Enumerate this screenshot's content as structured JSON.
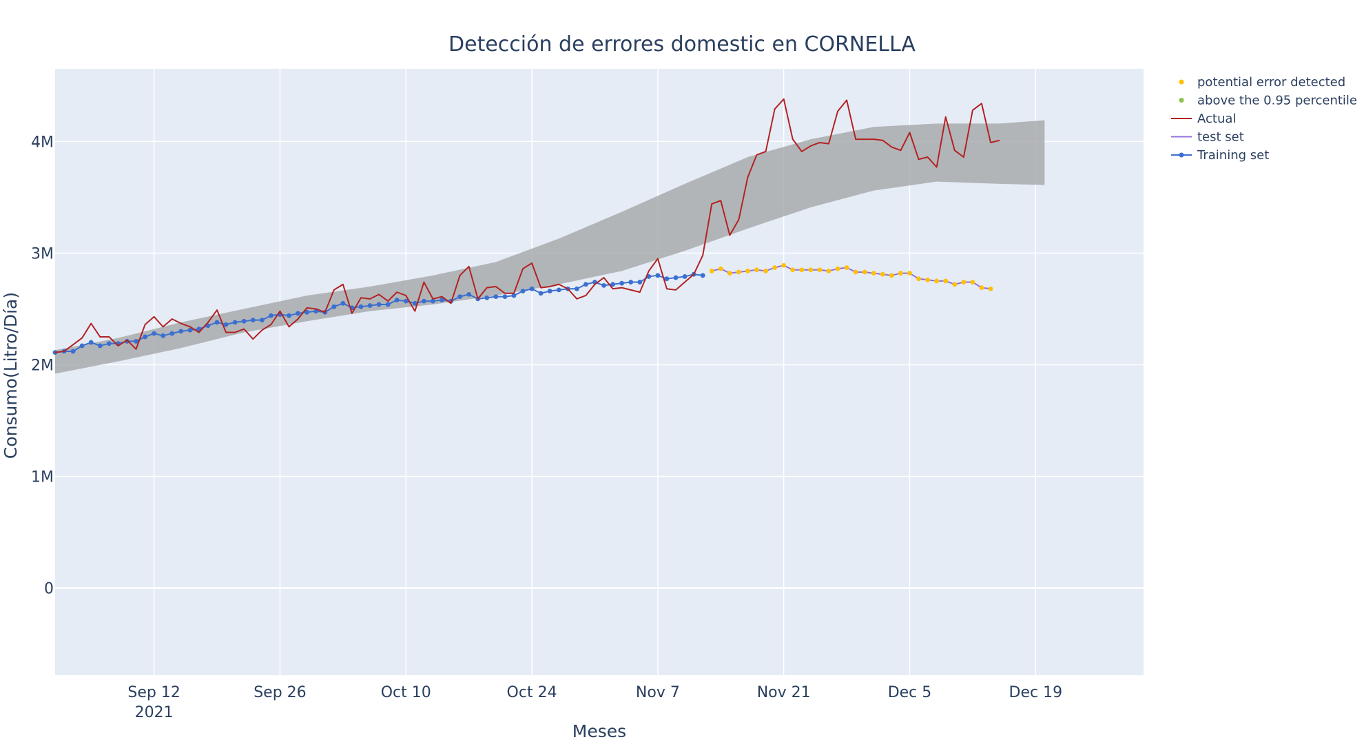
{
  "chart_data": {
    "type": "line",
    "title": "Detección de errores domestic en CORNELLA",
    "xlabel": "Meses",
    "ylabel": "Consumo(Litro/Día)",
    "xlim": [
      "2021-09-01",
      "2021-12-31"
    ],
    "ylim": [
      -780000,
      4650000
    ],
    "x_ticks": [
      {
        "date": "2021-09-12",
        "label": "Sep 12",
        "sublabel": "2021"
      },
      {
        "date": "2021-09-26",
        "label": "Sep 26"
      },
      {
        "date": "2021-10-10",
        "label": "Oct 10"
      },
      {
        "date": "2021-10-24",
        "label": "Oct 24"
      },
      {
        "date": "2021-11-07",
        "label": "Nov 7"
      },
      {
        "date": "2021-11-21",
        "label": "Nov 21"
      },
      {
        "date": "2021-12-05",
        "label": "Dec 5"
      },
      {
        "date": "2021-12-19",
        "label": "Dec 19"
      }
    ],
    "y_ticks": [
      {
        "value": 0,
        "label": "0"
      },
      {
        "value": 1000000,
        "label": "1M"
      },
      {
        "value": 2000000,
        "label": "2M"
      },
      {
        "value": 3000000,
        "label": "3M"
      },
      {
        "value": 4000000,
        "label": "4M"
      }
    ],
    "grid": true,
    "legend_position": "top-right",
    "legend": [
      {
        "label": "potential error detected",
        "symbol": "dot",
        "color": "#ffc107"
      },
      {
        "label": "above the 0.95 percentile",
        "symbol": "dot",
        "color": "#8bc34a"
      },
      {
        "label": "Actual",
        "symbol": "line",
        "color": "#b22222"
      },
      {
        "label": "test set",
        "symbol": "line",
        "color": "#9370db"
      },
      {
        "label": "Training set",
        "symbol": "line-dot",
        "color": "#3b6fd0"
      }
    ],
    "colors": {
      "plot_bg": "#e5ecf6",
      "grid": "#ffffff",
      "band": "#a9abad",
      "actual": "#b22222",
      "training": "#3b6fd0",
      "test": "#9370db",
      "error_marker": "#ffc107"
    },
    "confidence_band": {
      "x": [
        "2021-09-01",
        "2021-09-08",
        "2021-09-15",
        "2021-09-22",
        "2021-09-29",
        "2021-10-06",
        "2021-10-13",
        "2021-10-20",
        "2021-10-27",
        "2021-11-03",
        "2021-11-10",
        "2021-11-17",
        "2021-11-24",
        "2021-12-01",
        "2021-12-08",
        "2021-12-15",
        "2021-12-20"
      ],
      "lower": [
        1920000,
        2030000,
        2150000,
        2290000,
        2390000,
        2480000,
        2540000,
        2620000,
        2720000,
        2840000,
        3020000,
        3220000,
        3410000,
        3560000,
        3640000,
        3620000,
        3610000
      ],
      "upper": [
        2130000,
        2240000,
        2380000,
        2500000,
        2620000,
        2700000,
        2800000,
        2920000,
        3130000,
        3370000,
        3620000,
        3860000,
        4020000,
        4130000,
        4160000,
        4160000,
        4190000
      ]
    },
    "series": [
      {
        "name": "Actual",
        "start_date": "2021-09-01",
        "values": [
          2110000,
          2120000,
          2180000,
          2240000,
          2370000,
          2250000,
          2250000,
          2170000,
          2220000,
          2140000,
          2360000,
          2430000,
          2340000,
          2410000,
          2370000,
          2340000,
          2290000,
          2380000,
          2490000,
          2290000,
          2290000,
          2320000,
          2230000,
          2310000,
          2360000,
          2480000,
          2340000,
          2410000,
          2510000,
          2500000,
          2470000,
          2670000,
          2720000,
          2460000,
          2600000,
          2590000,
          2630000,
          2570000,
          2650000,
          2620000,
          2480000,
          2740000,
          2590000,
          2610000,
          2550000,
          2800000,
          2880000,
          2590000,
          2690000,
          2700000,
          2640000,
          2640000,
          2860000,
          2910000,
          2690000,
          2700000,
          2720000,
          2680000,
          2590000,
          2620000,
          2720000,
          2780000,
          2680000,
          2690000,
          2670000,
          2650000,
          2840000,
          2950000,
          2680000,
          2670000,
          2740000,
          2810000,
          2980000,
          3440000,
          3470000,
          3160000,
          3300000,
          3680000,
          3880000,
          3910000,
          4290000,
          4380000,
          4020000,
          3910000,
          3960000,
          3990000,
          3980000,
          4270000,
          4370000,
          4020000,
          4020000,
          4020000,
          4010000,
          3950000,
          3920000,
          4080000,
          3840000,
          3860000,
          3770000,
          4220000,
          3920000,
          3860000,
          4280000,
          4340000,
          3990000,
          4010000
        ]
      },
      {
        "name": "Training set",
        "start_date": "2021-09-01",
        "values": [
          2110000,
          2120000,
          2120000,
          2170000,
          2200000,
          2170000,
          2190000,
          2190000,
          2210000,
          2210000,
          2250000,
          2280000,
          2260000,
          2280000,
          2300000,
          2310000,
          2320000,
          2350000,
          2380000,
          2360000,
          2380000,
          2390000,
          2400000,
          2400000,
          2440000,
          2450000,
          2440000,
          2460000,
          2470000,
          2480000,
          2470000,
          2520000,
          2550000,
          2510000,
          2520000,
          2530000,
          2540000,
          2540000,
          2580000,
          2570000,
          2550000,
          2570000,
          2570000,
          2580000,
          2570000,
          2610000,
          2630000,
          2590000,
          2600000,
          2610000,
          2610000,
          2620000,
          2660000,
          2680000,
          2640000,
          2660000,
          2670000,
          2680000,
          2680000,
          2720000,
          2740000,
          2710000,
          2720000,
          2730000,
          2740000,
          2740000,
          2790000,
          2800000,
          2770000,
          2780000,
          2790000,
          2810000,
          2800000
        ]
      },
      {
        "name": "test set",
        "start_date": "2021-11-13",
        "values": [
          2840000,
          2860000,
          2820000,
          2830000,
          2840000,
          2850000,
          2840000,
          2870000,
          2890000,
          2850000,
          2850000,
          2850000,
          2850000,
          2840000,
          2860000,
          2870000,
          2830000,
          2830000,
          2820000,
          2810000,
          2800000,
          2820000,
          2820000,
          2770000,
          2760000,
          2750000,
          2750000,
          2720000,
          2740000,
          2740000,
          2690000,
          2680000
        ]
      }
    ],
    "markers": {
      "name": "potential error detected",
      "start_date": "2021-11-13",
      "values": [
        2840000,
        2860000,
        2820000,
        2830000,
        2840000,
        2850000,
        2840000,
        2870000,
        2890000,
        2850000,
        2850000,
        2850000,
        2850000,
        2840000,
        2860000,
        2870000,
        2830000,
        2830000,
        2820000,
        2810000,
        2800000,
        2820000,
        2820000,
        2770000,
        2760000,
        2750000,
        2750000,
        2720000,
        2740000,
        2740000,
        2690000,
        2680000
      ]
    }
  }
}
